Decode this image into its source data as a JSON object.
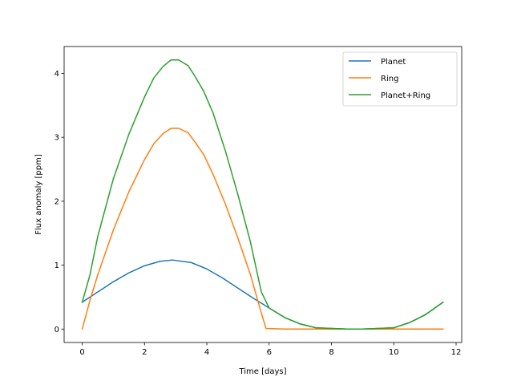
{
  "chart_data": {
    "type": "line",
    "xlabel": "Time [days]",
    "ylabel": "Flux anomaly [ppm]",
    "xlim": [
      -0.58,
      12.18
    ],
    "ylim": [
      -0.21,
      4.42
    ],
    "xticks": [
      "0",
      "2",
      "4",
      "6",
      "8",
      "10",
      "12"
    ],
    "yticks": [
      "0",
      "1",
      "2",
      "3",
      "4"
    ],
    "legend_position": "upper right",
    "series": [
      {
        "name": "Planet",
        "color": "#1f77b4",
        "x": [
          0.0,
          0.5,
          1.0,
          1.5,
          2.0,
          2.5,
          2.9,
          3.5,
          4.0,
          4.5,
          5.0,
          5.5,
          6.0,
          6.5,
          7.0,
          7.5,
          8.0,
          8.5,
          9.0,
          9.5,
          10.0,
          10.5,
          11.0,
          11.58
        ],
        "y": [
          0.42,
          0.58,
          0.74,
          0.88,
          0.99,
          1.06,
          1.08,
          1.04,
          0.94,
          0.8,
          0.64,
          0.48,
          0.33,
          0.18,
          0.08,
          0.02,
          0.01,
          0.0,
          0.0,
          0.01,
          0.02,
          0.1,
          0.22,
          0.42
        ]
      },
      {
        "name": "Ring",
        "color": "#ff7f0e",
        "x": [
          0.0,
          0.25,
          0.5,
          1.0,
          1.5,
          2.0,
          2.3,
          2.6,
          2.85,
          3.1,
          3.4,
          3.6,
          3.9,
          4.2,
          4.6,
          5.0,
          5.4,
          5.75,
          5.9,
          6.5,
          11.58
        ],
        "y": [
          0.0,
          0.45,
          0.85,
          1.55,
          2.15,
          2.65,
          2.9,
          3.06,
          3.14,
          3.14,
          3.07,
          2.94,
          2.73,
          2.42,
          1.95,
          1.42,
          0.85,
          0.25,
          0.01,
          0.0,
          0.0
        ]
      },
      {
        "name": "Planet+Ring",
        "color": "#2ca02c",
        "x": [
          0.0,
          0.25,
          0.5,
          1.0,
          1.5,
          2.0,
          2.3,
          2.6,
          2.85,
          3.1,
          3.4,
          3.6,
          3.9,
          4.2,
          4.6,
          5.0,
          5.4,
          5.75,
          6.0,
          6.5,
          7.0,
          7.5,
          8.0,
          8.5,
          9.0,
          9.5,
          10.0,
          10.5,
          11.0,
          11.58
        ],
        "y": [
          0.42,
          0.85,
          1.45,
          2.35,
          3.05,
          3.63,
          3.93,
          4.11,
          4.21,
          4.21,
          4.12,
          3.97,
          3.72,
          3.38,
          2.78,
          2.1,
          1.36,
          0.58,
          0.33,
          0.18,
          0.08,
          0.02,
          0.01,
          0.0,
          0.0,
          0.01,
          0.02,
          0.1,
          0.22,
          0.42
        ]
      }
    ]
  }
}
